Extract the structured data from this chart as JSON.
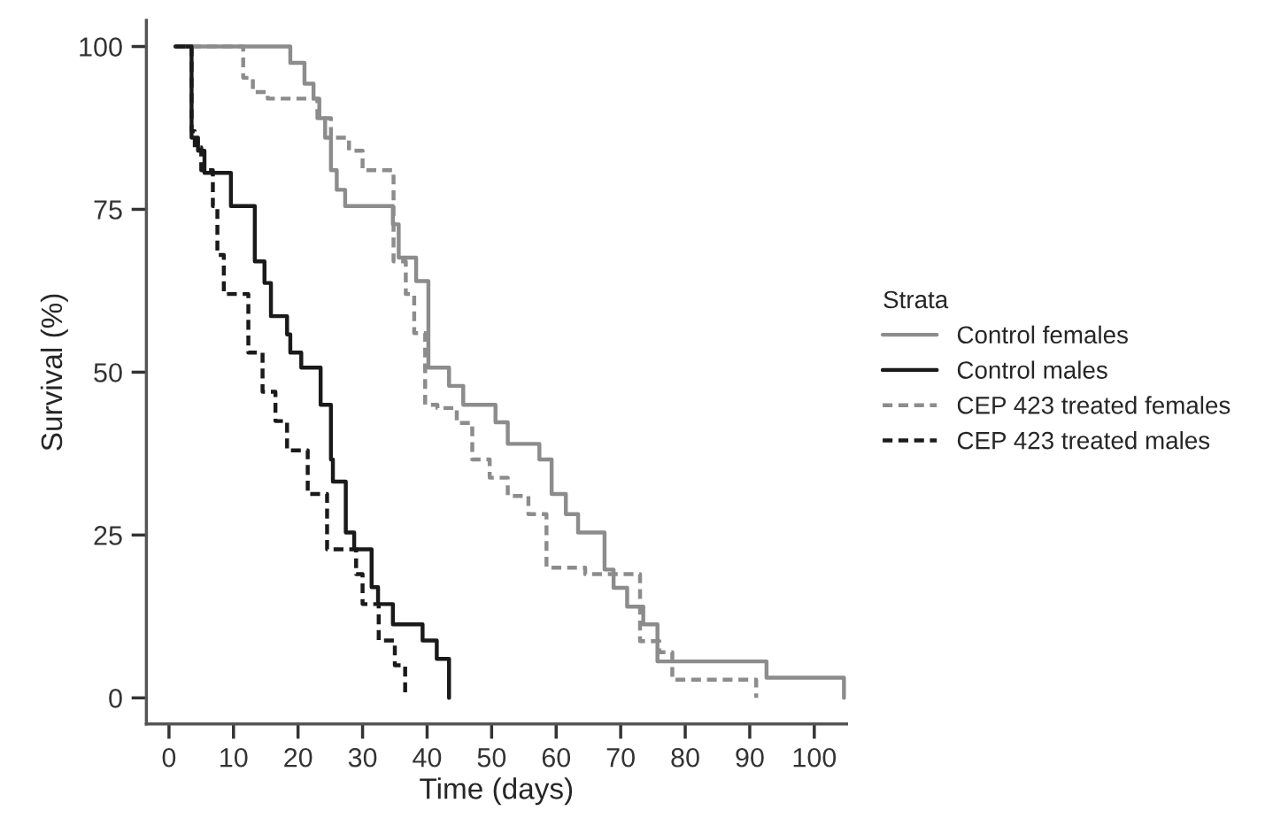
{
  "chart_data": {
    "type": "step",
    "xlabel": "Time (days)",
    "ylabel": "Survival (%)",
    "legend_title": "Strata",
    "legend": "right",
    "grid": false,
    "marker": "none",
    "xlim": [
      -3.5,
      105
    ],
    "ylim": [
      -4,
      104
    ],
    "xticks": [
      0,
      10,
      20,
      30,
      40,
      50,
      60,
      70,
      80,
      90,
      100
    ],
    "yticks": [
      0,
      25,
      50,
      75,
      100
    ],
    "series": [
      {
        "name": "Control females",
        "color": "#8c8c8c",
        "line_style": "solid",
        "x": [
          1,
          18.8,
          21,
          22.4,
          23.3,
          24.2,
          25.1,
          26,
          27.3,
          34.7,
          35.6,
          38.3,
          40.2,
          43.4,
          45.6,
          50.6,
          52.5,
          57.4,
          59.3,
          61.5,
          63.4,
          67.5,
          68.9,
          71,
          73.5,
          75.7,
          92.6,
          104.6,
          104.6
        ],
        "values": [
          100,
          97.5,
          94.3,
          92,
          89,
          86,
          81,
          78,
          75.5,
          72.7,
          67.6,
          64,
          50.7,
          47.9,
          45,
          42.3,
          39,
          36.6,
          31.3,
          28.2,
          25.4,
          19.7,
          16.9,
          14,
          11.3,
          5.6,
          3.1,
          3.1,
          0
        ]
      },
      {
        "name": "Control males",
        "color": "#1a1a1a",
        "line_style": "solid",
        "x": [
          1,
          3.5,
          4.5,
          5.5,
          9.6,
          13.3,
          14.8,
          15.8,
          18.3,
          18.8,
          20.5,
          23.5,
          25.1,
          25.4,
          27.4,
          28.7,
          31.4,
          32.4,
          34.7,
          39.3,
          41.5,
          43.4,
          43.4
        ],
        "values": [
          100,
          86,
          84,
          80.6,
          75.5,
          67,
          63.7,
          58.6,
          55.8,
          53,
          50.7,
          45,
          36.6,
          33.2,
          25.4,
          22.8,
          17,
          14.4,
          11.3,
          8.8,
          6,
          3.2,
          0
        ]
      },
      {
        "name": "CEP 423 treated females",
        "color": "#8c8c8c",
        "line_style": "dashed",
        "x": [
          1,
          11.5,
          13,
          15.3,
          23,
          25.1,
          27.9,
          30,
          34.8,
          36.7,
          38,
          39.7,
          41.6,
          44.6,
          47,
          49.7,
          52.5,
          55.7,
          58.5,
          64.5,
          73,
          76,
          78,
          91,
          91
        ],
        "values": [
          100,
          95.2,
          93,
          92,
          89,
          86,
          84,
          81,
          67,
          62,
          56,
          45,
          44.5,
          42.2,
          36.6,
          33.8,
          31,
          28.2,
          20,
          19,
          8.7,
          7,
          2.8,
          2.8,
          0
        ]
      },
      {
        "name": "CEP 423 treated males",
        "color": "#1a1a1a",
        "line_style": "dashed",
        "x": [
          1,
          3.5,
          4,
          5,
          6.8,
          7.5,
          8.5,
          12.3,
          14.5,
          16.5,
          18.3,
          21.5,
          24.5,
          29,
          30,
          32.5,
          35,
          36.6,
          36.6
        ],
        "values": [
          100,
          87,
          84.5,
          81,
          75.5,
          68,
          62,
          53,
          47,
          42.5,
          38,
          31.3,
          22.8,
          19,
          14.4,
          8.8,
          5,
          2.8,
          0
        ]
      }
    ]
  }
}
